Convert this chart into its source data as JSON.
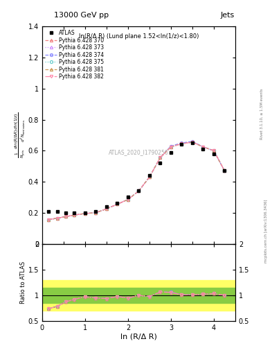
{
  "title_top": "13000 GeV pp",
  "title_right": "Jets",
  "rivet_label": "Rivet 3.1.10, ≥ 1.5M events",
  "mcplots_label": "mcplots.cern.ch [arXiv:1306.3436]",
  "plot_label": "ln(R/Δ R) (Lund plane 1.52<ln(1/z)<1.80)",
  "atlas_label": "ATLAS_2020_I1790256",
  "xlabel": "ln (R/Δ R)",
  "xlim": [
    0,
    4.5
  ],
  "ylim_main": [
    0,
    1.4
  ],
  "ylim_ratio": [
    0.5,
    2.0
  ],
  "atlas_x": [
    0.15,
    0.35,
    0.55,
    0.75,
    1.0,
    1.25,
    1.5,
    1.75,
    2.0,
    2.25,
    2.5,
    2.75,
    3.0,
    3.25,
    3.5,
    3.75,
    4.0,
    4.25
  ],
  "atlas_y": [
    0.21,
    0.21,
    0.2,
    0.2,
    0.2,
    0.21,
    0.24,
    0.26,
    0.3,
    0.34,
    0.44,
    0.52,
    0.59,
    0.64,
    0.65,
    0.61,
    0.58,
    0.47
  ],
  "p370_y": [
    0.155,
    0.165,
    0.175,
    0.185,
    0.195,
    0.2,
    0.225,
    0.255,
    0.285,
    0.34,
    0.43,
    0.555,
    0.625,
    0.645,
    0.655,
    0.625,
    0.6,
    0.47
  ],
  "p373_y": [
    0.155,
    0.165,
    0.175,
    0.185,
    0.195,
    0.2,
    0.225,
    0.255,
    0.285,
    0.34,
    0.43,
    0.555,
    0.625,
    0.645,
    0.655,
    0.625,
    0.6,
    0.47
  ],
  "p374_y": [
    0.155,
    0.165,
    0.175,
    0.185,
    0.195,
    0.2,
    0.225,
    0.255,
    0.285,
    0.34,
    0.43,
    0.555,
    0.63,
    0.65,
    0.66,
    0.625,
    0.6,
    0.47
  ],
  "p375_y": [
    0.155,
    0.165,
    0.175,
    0.185,
    0.195,
    0.2,
    0.225,
    0.255,
    0.285,
    0.34,
    0.43,
    0.555,
    0.625,
    0.645,
    0.655,
    0.625,
    0.6,
    0.47
  ],
  "p381_y": [
    0.155,
    0.165,
    0.175,
    0.185,
    0.195,
    0.2,
    0.225,
    0.255,
    0.285,
    0.34,
    0.43,
    0.555,
    0.625,
    0.645,
    0.655,
    0.625,
    0.6,
    0.47
  ],
  "p382_y": [
    0.155,
    0.165,
    0.175,
    0.185,
    0.195,
    0.2,
    0.225,
    0.255,
    0.285,
    0.34,
    0.43,
    0.555,
    0.625,
    0.645,
    0.655,
    0.625,
    0.6,
    0.47
  ],
  "ratio_370": [
    0.74,
    0.79,
    0.875,
    0.925,
    0.975,
    0.95,
    0.94,
    0.98,
    0.95,
    1.0,
    0.98,
    1.065,
    1.06,
    1.01,
    1.01,
    1.025,
    1.035,
    1.0
  ],
  "ratio_373": [
    0.74,
    0.79,
    0.875,
    0.925,
    0.975,
    0.95,
    0.94,
    0.98,
    0.95,
    1.0,
    0.98,
    1.065,
    1.06,
    1.01,
    1.01,
    1.025,
    1.035,
    1.0
  ],
  "ratio_374": [
    0.74,
    0.79,
    0.875,
    0.925,
    0.975,
    0.95,
    0.94,
    0.98,
    0.95,
    1.0,
    0.98,
    1.065,
    1.068,
    1.015,
    1.015,
    1.025,
    1.035,
    1.0
  ],
  "ratio_375": [
    0.74,
    0.79,
    0.875,
    0.925,
    0.975,
    0.95,
    0.94,
    0.98,
    0.95,
    1.0,
    0.98,
    1.065,
    1.06,
    1.01,
    1.01,
    1.025,
    1.035,
    1.0
  ],
  "ratio_381": [
    0.74,
    0.79,
    0.875,
    0.925,
    0.975,
    0.95,
    0.94,
    0.98,
    0.95,
    1.0,
    0.98,
    1.065,
    1.06,
    1.01,
    1.01,
    1.025,
    1.035,
    1.0
  ],
  "ratio_382": [
    0.74,
    0.79,
    0.875,
    0.925,
    0.975,
    0.95,
    0.94,
    0.98,
    0.95,
    1.0,
    0.98,
    1.065,
    1.06,
    1.01,
    1.01,
    1.025,
    1.035,
    1.0
  ],
  "green_band_lo": 0.85,
  "green_band_hi": 1.15,
  "yellow_band_lo": 0.7,
  "yellow_band_hi": 1.3,
  "colors": {
    "p370": "#f08080",
    "p373": "#cc88ff",
    "p374": "#8888ff",
    "p375": "#66cccc",
    "p381": "#cc9955",
    "p382": "#ff88aa"
  },
  "markers": {
    "p370": "^",
    "p373": "^",
    "p374": "o",
    "p375": "o",
    "p381": "^",
    "p382": "v"
  },
  "linestyles": {
    "p370": "--",
    "p373": ":",
    "p374": "--",
    "p375": ":",
    "p381": "--",
    "p382": "-."
  },
  "labels": [
    "Pythia 6.428 370",
    "Pythia 6.428 373",
    "Pythia 6.428 374",
    "Pythia 6.428 375",
    "Pythia 6.428 381",
    "Pythia 6.428 382"
  ]
}
